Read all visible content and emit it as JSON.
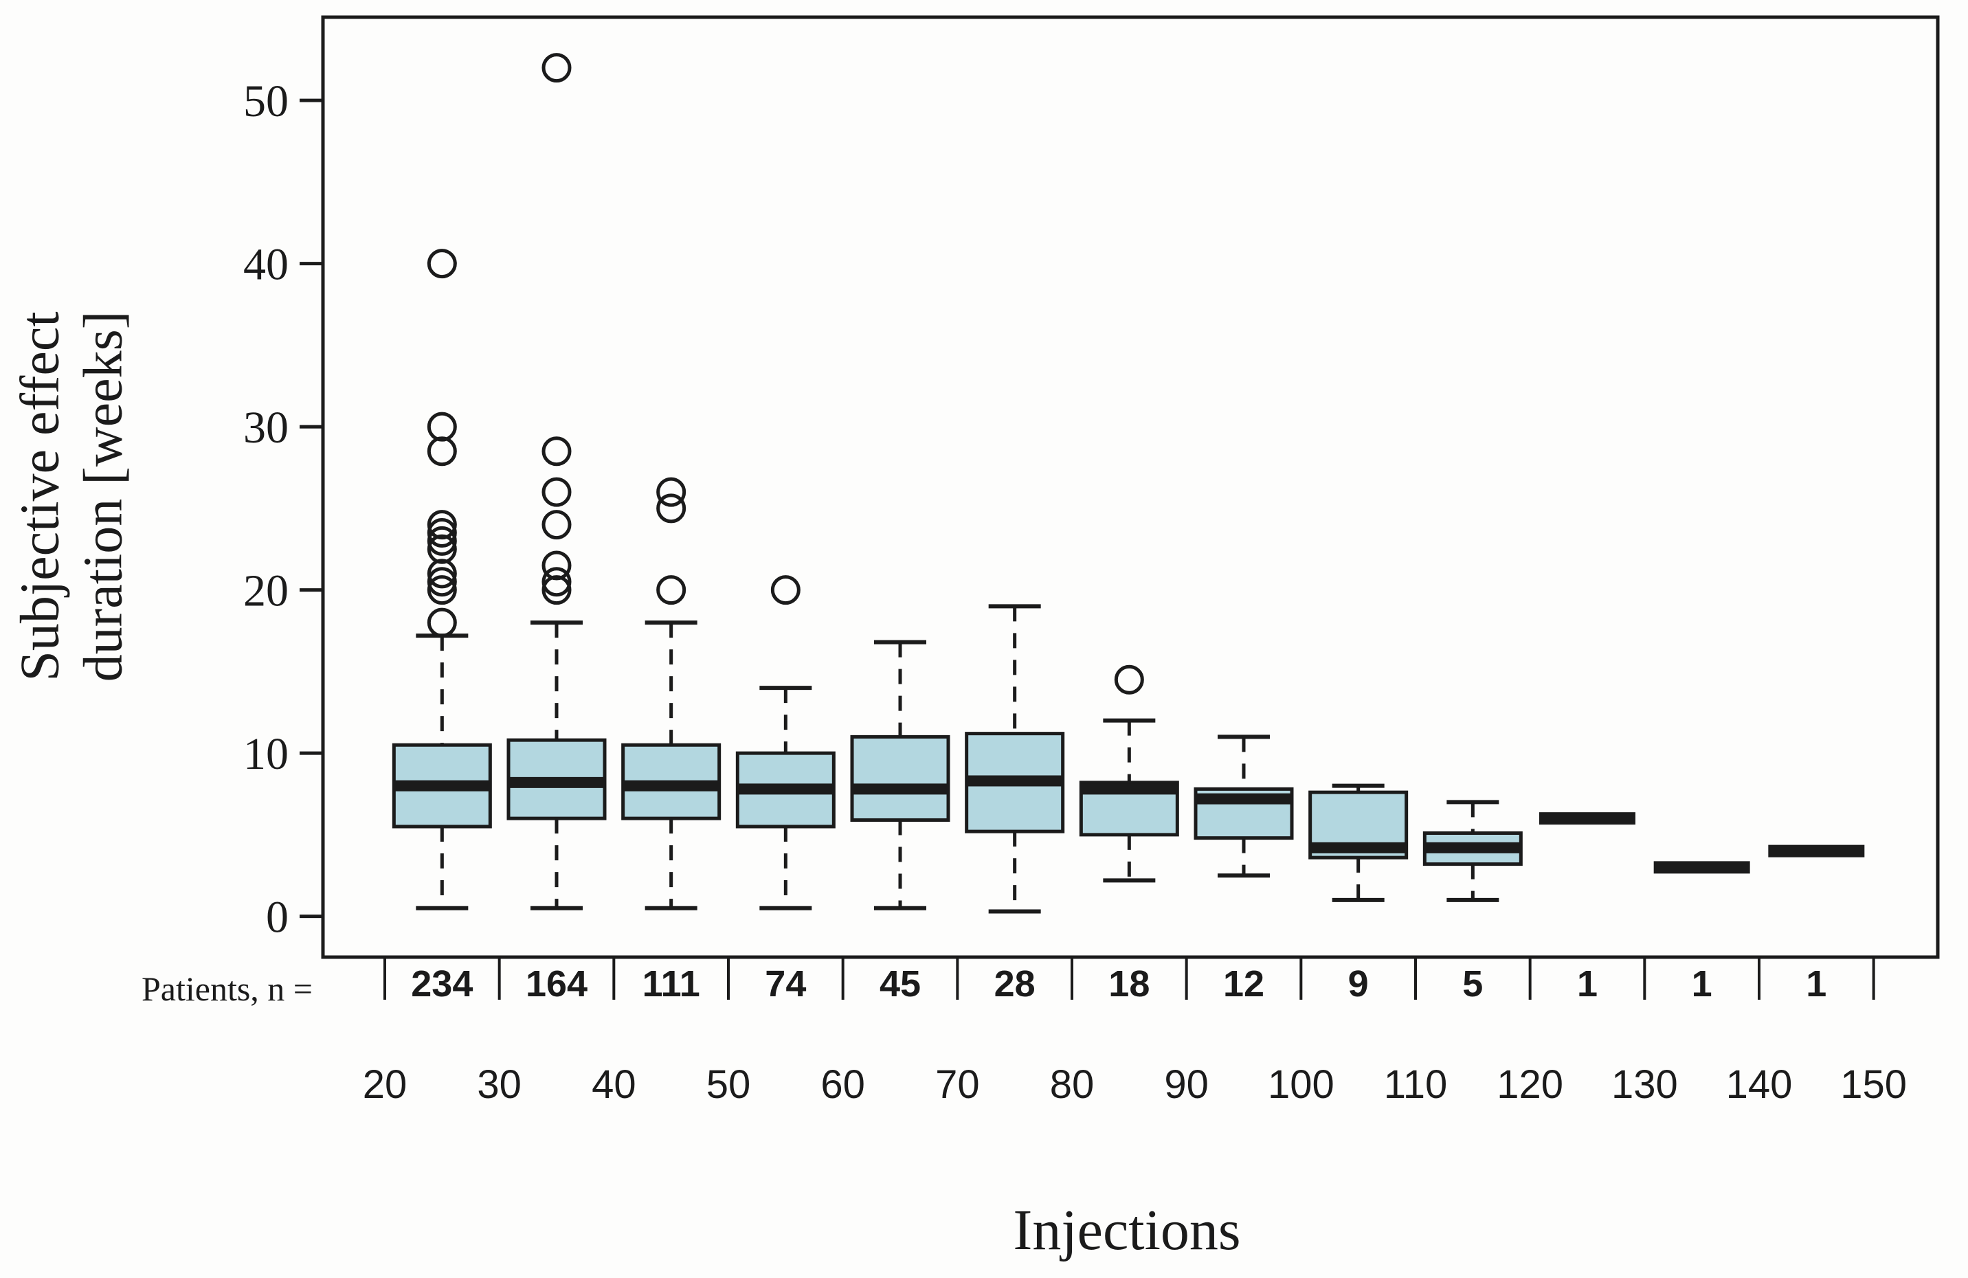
{
  "figure": {
    "y_axis_label_line1": "Subjective effect",
    "y_axis_label_line2": "duration [weeks]",
    "x_axis_title": "Injections",
    "patients_row_label": "Patients, n =",
    "background_color": "#fdfdfc",
    "box_fill_color": "#b3d7e0",
    "line_color": "#1b1b1b"
  },
  "chart_data": {
    "type": "boxplot",
    "title": "",
    "xlabel": "Injections",
    "ylabel": "Subjective effect duration [weeks]",
    "grid": false,
    "legend": "none",
    "x_ticks": [
      20,
      30,
      40,
      50,
      60,
      70,
      80,
      90,
      100,
      110,
      120,
      130,
      140,
      150
    ],
    "y_ticks": [
      0,
      10,
      20,
      30,
      40,
      50
    ],
    "xlim": [
      14.6,
      155.6
    ],
    "ylim": [
      -2.5,
      55.1
    ],
    "patients_n": [
      234,
      164,
      111,
      74,
      45,
      28,
      18,
      12,
      9,
      5,
      1,
      1,
      1
    ],
    "series": [
      {
        "x": 25,
        "n": 234,
        "whislo": 0.5,
        "q1": 5.5,
        "med": 8.0,
        "q3": 10.5,
        "whishi": 17.2,
        "outliers": [
          18,
          20,
          20.5,
          21,
          22.5,
          23,
          23.5,
          24,
          28.5,
          30,
          40
        ]
      },
      {
        "x": 35,
        "n": 164,
        "whislo": 0.5,
        "q1": 6.0,
        "med": 8.2,
        "q3": 10.8,
        "whishi": 18.0,
        "outliers": [
          20,
          20.5,
          21.5,
          24,
          26,
          28.5,
          52
        ]
      },
      {
        "x": 45,
        "n": 111,
        "whislo": 0.5,
        "q1": 6.0,
        "med": 8.0,
        "q3": 10.5,
        "whishi": 18.0,
        "outliers": [
          20,
          25,
          26
        ]
      },
      {
        "x": 55,
        "n": 74,
        "whislo": 0.5,
        "q1": 5.5,
        "med": 7.8,
        "q3": 10.0,
        "whishi": 14.0,
        "outliers": [
          20
        ]
      },
      {
        "x": 65,
        "n": 45,
        "whislo": 0.5,
        "q1": 5.9,
        "med": 7.8,
        "q3": 11.0,
        "whishi": 16.8,
        "outliers": []
      },
      {
        "x": 75,
        "n": 28,
        "whislo": 0.3,
        "q1": 5.2,
        "med": 8.3,
        "q3": 11.2,
        "whishi": 19.0,
        "outliers": []
      },
      {
        "x": 85,
        "n": 18,
        "whislo": 2.2,
        "q1": 5.0,
        "med": 7.8,
        "q3": 8.2,
        "whishi": 12.0,
        "outliers": [
          14.5
        ]
      },
      {
        "x": 95,
        "n": 12,
        "whislo": 2.5,
        "q1": 4.8,
        "med": 7.2,
        "q3": 7.8,
        "whishi": 11.0,
        "outliers": []
      },
      {
        "x": 105,
        "n": 9,
        "whislo": 1.0,
        "q1": 3.6,
        "med": 4.2,
        "q3": 7.6,
        "whishi": 8.0,
        "outliers": []
      },
      {
        "x": 115,
        "n": 5,
        "whislo": 1.0,
        "q1": 3.2,
        "med": 4.2,
        "q3": 5.1,
        "whishi": 7.0,
        "outliers": []
      },
      {
        "x": 125,
        "n": 1,
        "med": 6.0,
        "outliers": []
      },
      {
        "x": 135,
        "n": 1,
        "med": 3.0,
        "outliers": []
      },
      {
        "x": 145,
        "n": 1,
        "med": 4.0,
        "outliers": []
      }
    ]
  }
}
